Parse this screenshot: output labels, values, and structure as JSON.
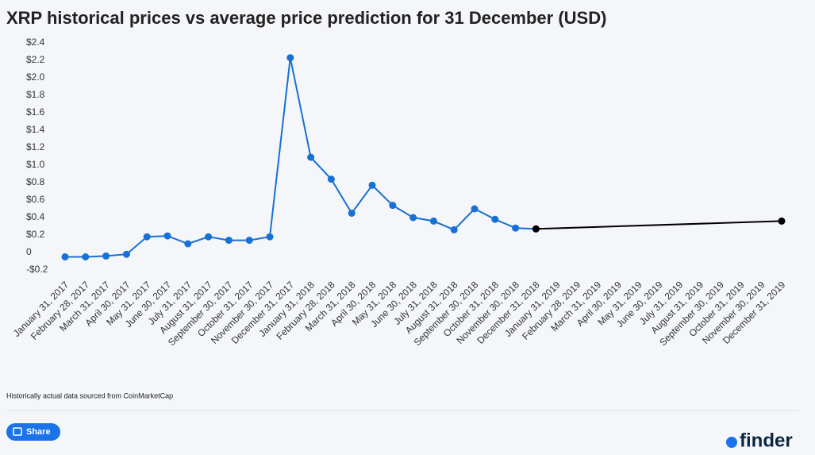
{
  "chart_data": {
    "type": "line",
    "title": "XRP historical prices vs average price prediction for 31 December (USD)",
    "source": "Historically actual data sourced from CoinMarketCap",
    "categories": [
      "January 31, 2017",
      "February 28, 2017",
      "March 31, 2017",
      "April 30, 2017",
      "May 31, 2017",
      "June 30, 2017",
      "July 31, 2017",
      "August 31, 2017",
      "September 30, 2017",
      "October 31, 2017",
      "November 30, 2017",
      "December 31, 2017",
      "January 31, 2018",
      "February 28, 2018",
      "March 31, 2018",
      "April 30, 2018",
      "May 31, 2018",
      "June 30, 2018",
      "July 31, 2018",
      "August 31, 2018",
      "September 30, 2018",
      "October 31, 2018",
      "November 30, 2018",
      "December 31, 2018",
      "January 31, 2019",
      "February 28, 2019",
      "March 31, 2019",
      "April 30, 2019",
      "May 31, 2019",
      "June 30, 2019",
      "July 31, 2019",
      "August 31, 2019",
      "September 30, 2019",
      "October 31, 2019",
      "November 30, 2019",
      "December 31, 2019"
    ],
    "series": [
      {
        "color": "#1670d6",
        "values": [
          -0.05,
          -0.05,
          -0.04,
          -0.02,
          0.18,
          0.19,
          0.1,
          0.18,
          0.14,
          0.14,
          0.18,
          2.23,
          1.09,
          0.84,
          0.45,
          0.77,
          0.54,
          0.4,
          0.36,
          0.26,
          0.5,
          0.38,
          0.28,
          0.27,
          null,
          null,
          null,
          null,
          null,
          null,
          null,
          null,
          null,
          null,
          null,
          null
        ]
      },
      {
        "color": "#000000",
        "span_gaps": true,
        "values": [
          null,
          null,
          null,
          null,
          null,
          null,
          null,
          null,
          null,
          null,
          null,
          null,
          null,
          null,
          null,
          null,
          null,
          null,
          null,
          null,
          null,
          null,
          null,
          0.27,
          null,
          null,
          null,
          null,
          null,
          null,
          null,
          null,
          null,
          null,
          null,
          0.36
        ]
      }
    ],
    "ylim": [
      -0.2,
      2.4
    ],
    "yticks": [
      {
        "value": -0.2,
        "label": "-$0.2"
      },
      0,
      {
        "value": 0.2,
        "label": "$0.2"
      },
      {
        "value": 0.4,
        "label": "$0.4"
      },
      {
        "value": 0.6,
        "label": "$0.6"
      },
      {
        "value": 0.8,
        "label": "$0.8"
      },
      {
        "value": 1.0,
        "label": "$1.0"
      },
      {
        "value": 1.2,
        "label": "$1.2"
      },
      {
        "value": 1.4,
        "label": "$1.4"
      },
      {
        "value": 1.6,
        "label": "$1.6"
      },
      {
        "value": 1.8,
        "label": "$1.8"
      },
      {
        "value": 2.0,
        "label": "$2.0"
      },
      {
        "value": 2.2,
        "label": "$2.2"
      },
      {
        "value": 2.4,
        "label": "$2.4"
      }
    ],
    "grid": false
  },
  "share_button": "Share",
  "brand": "finder"
}
